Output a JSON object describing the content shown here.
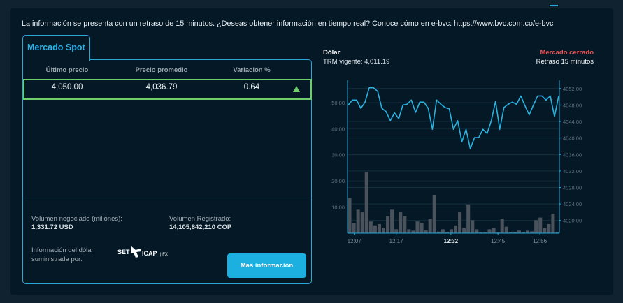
{
  "notice": "La información se presenta con un retraso de 15 minutos. ¿Deseas obtener información en tiempo real? Conoce cómo en e-bvc: https://www.bvc.com.co/e-bvc",
  "tab_label": "Mercado Spot",
  "table": {
    "headers": [
      "Último precio",
      "Precio promedio",
      "Variación %"
    ],
    "row": [
      "4,050.00",
      "4,036.79",
      "0.64"
    ],
    "trend_icon": "triangle-up-icon",
    "trend_color": "#6dce6a"
  },
  "volume_negotiated": {
    "label": "Volumen negociado (millones):",
    "value": "1,331.72 USD"
  },
  "volume_registered": {
    "label": "Volumen Registrado:",
    "value": "14,105,842,210 COP"
  },
  "provider": {
    "label_line1": "Información del dólar",
    "label_line2": "suministrada por:",
    "logo_text": "SET ICAP | FX"
  },
  "more_info_button": "Mas información",
  "chart_header": {
    "title": "Dólar",
    "trm": "TRM vigente: 4,011.19",
    "status": "Mercado cerrado",
    "status_color": "#ec5252",
    "delay": "Retraso 15 minutos"
  },
  "chart_data": {
    "type": "bar+line",
    "left_axis": {
      "ticks": [
        "10.00",
        "20.00",
        "30.00",
        "40.00",
        "50.00"
      ],
      "tick_values": [
        10,
        20,
        30,
        40,
        50
      ],
      "range": [
        0,
        58.5
      ]
    },
    "right_axis": {
      "ticks": [
        "4020.00",
        "4024.00",
        "4028.00",
        "4032.00",
        "4036.00",
        "4040.00",
        "4044.00",
        "4048.00",
        "4052.00"
      ],
      "tick_values": [
        4020,
        4024,
        4028,
        4032,
        4036,
        4040,
        4044,
        4048,
        4052
      ],
      "range": [
        4016.9,
        4054
      ]
    },
    "x_ticks": [
      {
        "label": "12:07",
        "index": 1.6,
        "bold": false
      },
      {
        "label": "12:17",
        "index": 11.5,
        "bold": false
      },
      {
        "label": "12:32",
        "index": 24.4,
        "bold": true
      },
      {
        "label": "12:45",
        "index": 35.5,
        "bold": false
      },
      {
        "label": "12:56",
        "index": 45.4,
        "bold": false
      }
    ],
    "volume_series": {
      "color": "#4a525b",
      "values": [
        13.5,
        4,
        9,
        8,
        23.5,
        4.5,
        3,
        3.5,
        2,
        6.5,
        9,
        1.5,
        8,
        6.5,
        1.5,
        1,
        4.5,
        4,
        1.2,
        5.5,
        14.5,
        0.6,
        1.5,
        0.5,
        1.5,
        3,
        8,
        2,
        11,
        5,
        1.5,
        0.3,
        0.5,
        1.5,
        2,
        0.3,
        5.5,
        2.5,
        0.5,
        0.5,
        1,
        0.4,
        1,
        0.7,
        5,
        6,
        2,
        3.5,
        7.5,
        0.4
      ]
    },
    "price_series": {
      "color": "#29b3e0",
      "values": [
        4048,
        4049.2,
        4049.2,
        4047.2,
        4048.7,
        4052.2,
        4052.2,
        4051.3,
        4047.2,
        4046.4,
        4044.2,
        4046.1,
        4044.7,
        4048,
        4048.2,
        4049.2,
        4046.2,
        4048.7,
        4048.7,
        4047.2,
        4042.1,
        4049.2,
        4048.2,
        4047.4,
        4047.1,
        4042.1,
        4044.2,
        4039.1,
        4042.1,
        4037.4,
        4040.1,
        4040.1,
        4042.1,
        4041.1,
        4044.2,
        4048.9,
        4042.1,
        4047.4,
        4048.2,
        4048.7,
        4048.2,
        4050.2,
        4047.8,
        4045.6,
        4048,
        4050.2,
        4050.2,
        4049.2,
        4050.2,
        4045.2,
        4050.2
      ]
    },
    "grid": true
  }
}
